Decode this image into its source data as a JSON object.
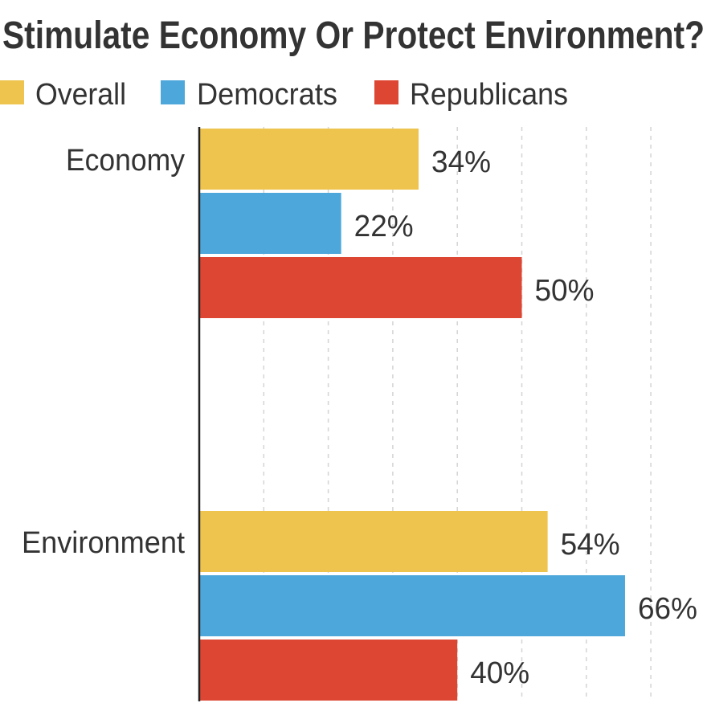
{
  "chart_data": {
    "type": "bar",
    "orientation": "horizontal",
    "title": "Stimulate Economy Or Protect Environment?",
    "categories": [
      "Economy",
      "Environment"
    ],
    "series": [
      {
        "name": "Overall",
        "color": "#EEC44F",
        "values": [
          34,
          54
        ],
        "labels": [
          "34%",
          "54%"
        ]
      },
      {
        "name": "Democrats",
        "color": "#4EA7DB",
        "values": [
          22,
          66
        ],
        "labels": [
          "22%",
          "66%"
        ]
      },
      {
        "name": "Republicans",
        "color": "#DD4632",
        "values": [
          50,
          40
        ],
        "labels": [
          "50%",
          "40%"
        ]
      }
    ],
    "xlim": [
      0,
      78
    ],
    "grid": true,
    "gridlines": [
      10,
      20,
      30,
      40,
      50,
      60,
      70
    ],
    "legend": "top-left"
  }
}
